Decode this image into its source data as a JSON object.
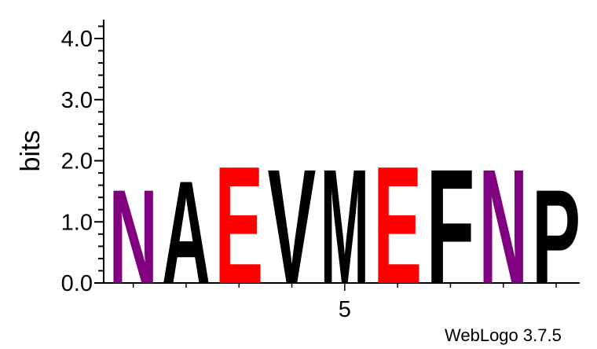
{
  "chart_data": {
    "type": "sequence-logo",
    "ylabel": "bits",
    "ylim": [
      0,
      4.3
    ],
    "y_ticks": [
      "0.0",
      "1.0",
      "2.0",
      "3.0",
      "4.0"
    ],
    "y_tick_values": [
      0,
      1,
      2,
      3,
      4
    ],
    "x_positions": [
      1,
      2,
      3,
      4,
      5,
      6,
      7,
      8,
      9
    ],
    "x_tick_labels": [
      {
        "position": 5,
        "label": "5"
      }
    ],
    "stacks": [
      {
        "position": 1,
        "letter": "N",
        "bits": 1.6,
        "color": "#800080"
      },
      {
        "position": 2,
        "letter": "A",
        "bits": 1.75,
        "color": "#000000"
      },
      {
        "position": 3,
        "letter": "E",
        "bits": 2.0,
        "color": "#ff0000"
      },
      {
        "position": 4,
        "letter": "V",
        "bits": 1.95,
        "color": "#000000"
      },
      {
        "position": 5,
        "letter": "M",
        "bits": 1.95,
        "color": "#000000"
      },
      {
        "position": 6,
        "letter": "E",
        "bits": 2.0,
        "color": "#ff0000"
      },
      {
        "position": 7,
        "letter": "F",
        "bits": 1.95,
        "color": "#000000"
      },
      {
        "position": 8,
        "letter": "N",
        "bits": 1.95,
        "color": "#800080"
      },
      {
        "position": 9,
        "letter": "P",
        "bits": 1.6,
        "color": "#000000"
      }
    ]
  },
  "credit": "WebLogo 3.7.5"
}
